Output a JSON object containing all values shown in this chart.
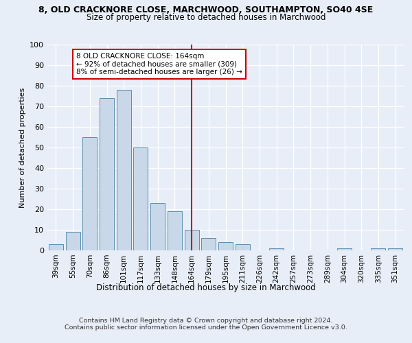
{
  "title1": "8, OLD CRACKNORE CLOSE, MARCHWOOD, SOUTHAMPTON, SO40 4SE",
  "title2": "Size of property relative to detached houses in Marchwood",
  "xlabel": "Distribution of detached houses by size in Marchwood",
  "ylabel": "Number of detached properties",
  "categories": [
    "39sqm",
    "55sqm",
    "70sqm",
    "86sqm",
    "101sqm",
    "117sqm",
    "133sqm",
    "148sqm",
    "164sqm",
    "179sqm",
    "195sqm",
    "211sqm",
    "226sqm",
    "242sqm",
    "257sqm",
    "273sqm",
    "289sqm",
    "304sqm",
    "320sqm",
    "335sqm",
    "351sqm"
  ],
  "values": [
    3,
    9,
    55,
    74,
    78,
    50,
    23,
    19,
    10,
    6,
    4,
    3,
    0,
    1,
    0,
    0,
    0,
    1,
    0,
    1,
    1
  ],
  "bar_color": "#c8d8e8",
  "bar_edge_color": "#5b8db0",
  "vline_x": 8,
  "vline_color": "#cc0000",
  "annotation_text": "8 OLD CRACKNORE CLOSE: 164sqm\n← 92% of detached houses are smaller (309)\n8% of semi-detached houses are larger (26) →",
  "annotation_box_color": "#ffffff",
  "annotation_box_edge_color": "#cc0000",
  "ylim": [
    0,
    100
  ],
  "yticks": [
    0,
    10,
    20,
    30,
    40,
    50,
    60,
    70,
    80,
    90,
    100
  ],
  "footer": "Contains HM Land Registry data © Crown copyright and database right 2024.\nContains public sector information licensed under the Open Government Licence v3.0.",
  "bg_color": "#e8eef8",
  "grid_color": "#ffffff"
}
